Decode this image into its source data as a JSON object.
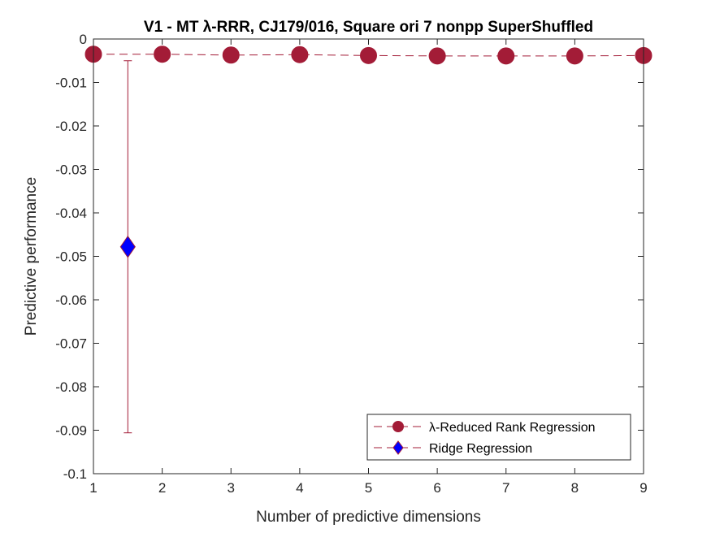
{
  "chart_data": {
    "type": "scatter",
    "title": "V1 - MT λ-RRR, CJ179/016, Square ori 7 nonpp  SuperShuffled",
    "xlabel": "Number of predictive dimensions",
    "ylabel": "Predictive performance",
    "xlim": [
      1,
      9
    ],
    "ylim": [
      -0.1,
      0
    ],
    "xticks": [
      1,
      2,
      3,
      4,
      5,
      6,
      7,
      8,
      9
    ],
    "xtick_labels": [
      "1",
      "2",
      "3",
      "4",
      "5",
      "6",
      "7",
      "8",
      "9"
    ],
    "yticks": [
      0,
      -0.01,
      -0.02,
      -0.03,
      -0.04,
      -0.05,
      -0.06,
      -0.07,
      -0.08,
      -0.09,
      -0.1
    ],
    "ytick_labels": [
      "0",
      "-0.01",
      "-0.02",
      "-0.03",
      "-0.04",
      "-0.05",
      "-0.06",
      "-0.07",
      "-0.08",
      "-0.09",
      "-0.1"
    ],
    "grid": false,
    "legend_position": "bottom-right",
    "series": [
      {
        "name": "λ-Reduced Rank Regression",
        "marker": "circle",
        "color": "#a31c37",
        "line_style": "dashed",
        "x": [
          1,
          2,
          3,
          4,
          5,
          6,
          7,
          8,
          9
        ],
        "y": [
          -0.0035,
          -0.0035,
          -0.0037,
          -0.0036,
          -0.0038,
          -0.0039,
          -0.0039,
          -0.0039,
          -0.0038
        ],
        "error": [
          0.0003,
          0.0003,
          0.0003,
          0.0003,
          0.0003,
          0.0003,
          0.0003,
          0.0003,
          0.0003
        ]
      },
      {
        "name": "Ridge Regression",
        "marker": "diamond",
        "color": "#0000ff",
        "edge_color": "#a31c37",
        "line_style": "dashed",
        "x": [
          1.5
        ],
        "y": [
          -0.0478
        ],
        "error_low": [
          0.0428
        ],
        "error_high": [
          0.0428
        ]
      }
    ]
  }
}
